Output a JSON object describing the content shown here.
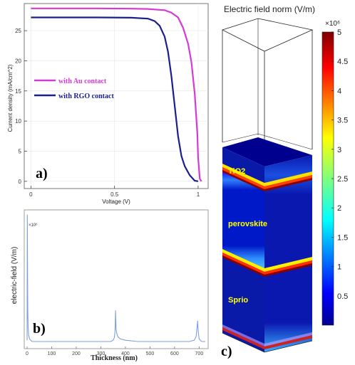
{
  "colors": {
    "au_series": "#d63ad6",
    "rgo_series": "#1a1f8c",
    "efield_line": "#7f9fe0",
    "layer_label": "#ffff00"
  },
  "chart_data": [
    {
      "type": "line",
      "panel_label": "a)",
      "xlabel": "Voltage (V)",
      "ylabel": "Current density (mA/cm^2)",
      "xlim": [
        -0.04,
        1.06
      ],
      "ylim": [
        -1.2,
        29.5
      ],
      "xticks": [
        0,
        0.5,
        1
      ],
      "xtick_labels": [
        "0",
        "0.5",
        "1"
      ],
      "yticks": [
        0,
        5,
        10,
        15,
        20,
        25
      ],
      "ytick_labels": [
        "0",
        "5",
        "10",
        "15",
        "20",
        "25"
      ],
      "legend_position": "center-left",
      "series": [
        {
          "name": "with Au contact",
          "color": "#d63ad6",
          "points": [
            [
              0,
              28.7
            ],
            [
              0.2,
              28.7
            ],
            [
              0.4,
              28.7
            ],
            [
              0.6,
              28.65
            ],
            [
              0.7,
              28.6
            ],
            [
              0.8,
              28.4
            ],
            [
              0.84,
              28.0
            ],
            [
              0.88,
              27.2
            ],
            [
              0.91,
              25.5
            ],
            [
              0.94,
              22.8
            ],
            [
              0.96,
              19.8
            ],
            [
              0.98,
              14.5
            ],
            [
              0.995,
              8.0
            ],
            [
              1.0,
              4.0
            ],
            [
              1.01,
              0.4
            ],
            [
              1.02,
              0.0
            ]
          ]
        },
        {
          "name": "with RGO contact",
          "color": "#1a1f8c",
          "points": [
            [
              0,
              27.2
            ],
            [
              0.2,
              27.2
            ],
            [
              0.4,
              27.2
            ],
            [
              0.6,
              27.15
            ],
            [
              0.7,
              27.0
            ],
            [
              0.74,
              26.6
            ],
            [
              0.77,
              25.8
            ],
            [
              0.8,
              24.0
            ],
            [
              0.82,
              21.5
            ],
            [
              0.84,
              17.5
            ],
            [
              0.86,
              12.5
            ],
            [
              0.88,
              7.5
            ],
            [
              0.9,
              4.2
            ],
            [
              0.92,
              2.5
            ],
            [
              0.95,
              1.0
            ],
            [
              0.98,
              0.1
            ],
            [
              1.0,
              0.0
            ]
          ]
        }
      ]
    },
    {
      "type": "line",
      "panel_label": "b)",
      "xlabel": "Thickness (nm)",
      "ylabel": "electric-field (V/m)",
      "exponent_label": "×10⁶",
      "xlim": [
        0,
        725
      ],
      "ylim": [
        0,
        1.0
      ],
      "xticks": [
        0,
        100,
        200,
        300,
        400,
        500,
        600,
        700
      ],
      "xtick_labels": [
        "0",
        "100",
        "200",
        "300",
        "400",
        "500",
        "600",
        "700"
      ],
      "series": [
        {
          "name": "",
          "color": "#7f9fe0",
          "points": [
            [
              0,
              0.01
            ],
            [
              1,
              0.98
            ],
            [
              2,
              0.5
            ],
            [
              3,
              0.25
            ],
            [
              4,
              0.12
            ],
            [
              6,
              0.05
            ],
            [
              10,
              0.02
            ],
            [
              20,
              0.0
            ],
            [
              340,
              0.0
            ],
            [
              350,
              0.01
            ],
            [
              355,
              0.03
            ],
            [
              358,
              0.08
            ],
            [
              360,
              0.24
            ],
            [
              362,
              0.1
            ],
            [
              365,
              0.06
            ],
            [
              370,
              0.035
            ],
            [
              380,
              0.02
            ],
            [
              400,
              0.01
            ],
            [
              450,
              0.0
            ],
            [
              660,
              0.0
            ],
            [
              680,
              0.01
            ],
            [
              688,
              0.04
            ],
            [
              692,
              0.12
            ],
            [
              694,
              0.16
            ],
            [
              696,
              0.08
            ],
            [
              700,
              0.02
            ],
            [
              710,
              0.0
            ],
            [
              725,
              0.0
            ]
          ]
        }
      ]
    },
    {
      "type": "heatmap",
      "panel_label": "c)",
      "title": "Electric field norm (V/m)",
      "colorbar_exponent": "×10⁶",
      "colorbar_range": [
        0,
        5
      ],
      "colorbar_ticks": [
        0.5,
        1,
        1.5,
        2,
        2.5,
        3,
        3.5,
        4,
        4.5,
        5
      ],
      "colorbar_tick_labels": [
        "0.5",
        "1",
        "1.5",
        "2",
        "2.5",
        "3",
        "3.5",
        "4",
        "4.5",
        "5"
      ],
      "layers": [
        "TiO2",
        "perovskite",
        "Sprio"
      ]
    }
  ]
}
